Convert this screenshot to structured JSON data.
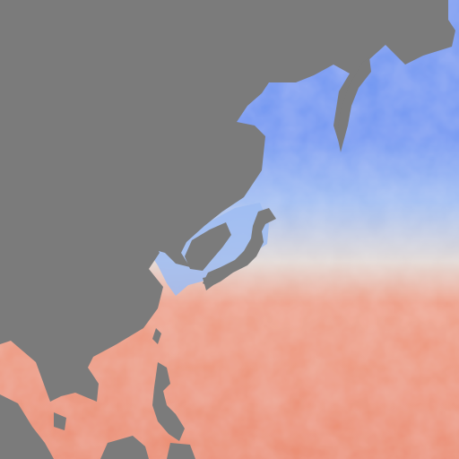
{
  "map": {
    "kind": "sea-surface-temperature",
    "region": "northwest-pacific",
    "colors": {
      "land": "#7b7b7b",
      "cold": "#6f96f2",
      "cool": "#9ebcf2",
      "neutral": "#e2d8d4",
      "warm": "#ee9e86",
      "hot": "#ea8a6e"
    }
  }
}
